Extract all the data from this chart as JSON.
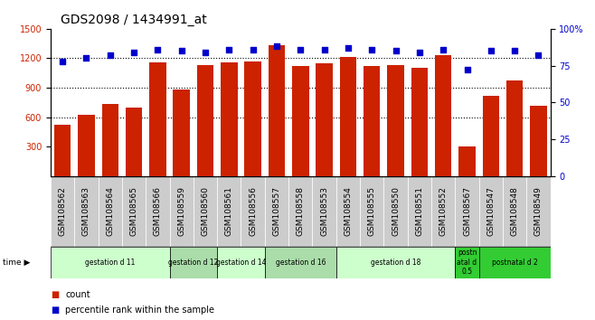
{
  "title": "GDS2098 / 1434991_at",
  "samples": [
    "GSM108562",
    "GSM108563",
    "GSM108564",
    "GSM108565",
    "GSM108566",
    "GSM108559",
    "GSM108560",
    "GSM108561",
    "GSM108556",
    "GSM108557",
    "GSM108558",
    "GSM108553",
    "GSM108554",
    "GSM108555",
    "GSM108550",
    "GSM108551",
    "GSM108552",
    "GSM108567",
    "GSM108547",
    "GSM108548",
    "GSM108549"
  ],
  "counts": [
    520,
    620,
    730,
    700,
    1160,
    880,
    1130,
    1160,
    1170,
    1330,
    1120,
    1150,
    1210,
    1120,
    1130,
    1100,
    1230,
    300,
    820,
    970,
    720
  ],
  "percentiles": [
    78,
    80,
    82,
    84,
    86,
    85,
    84,
    86,
    86,
    88,
    86,
    86,
    87,
    86,
    85,
    84,
    86,
    72,
    85,
    85,
    82
  ],
  "groups": [
    {
      "label": "gestation d 11",
      "start": 0,
      "end": 5,
      "color": "#ccffcc"
    },
    {
      "label": "gestation d 12",
      "start": 5,
      "end": 7,
      "color": "#aaddaa"
    },
    {
      "label": "gestation d 14",
      "start": 7,
      "end": 9,
      "color": "#ccffcc"
    },
    {
      "label": "gestation d 16",
      "start": 9,
      "end": 12,
      "color": "#aaddaa"
    },
    {
      "label": "gestation d 18",
      "start": 12,
      "end": 17,
      "color": "#ccffcc"
    },
    {
      "label": "postn\natal d\n0.5",
      "start": 17,
      "end": 18,
      "color": "#33cc33"
    },
    {
      "label": "postnatal d 2",
      "start": 18,
      "end": 21,
      "color": "#33cc33"
    }
  ],
  "bar_color": "#cc2200",
  "dot_color": "#0000cc",
  "left_ylim": [
    0,
    1500
  ],
  "right_ylim": [
    0,
    100
  ],
  "left_yticks": [
    300,
    600,
    900,
    1200,
    1500
  ],
  "right_yticks": [
    0,
    25,
    50,
    75,
    100
  ],
  "right_yticklabels": [
    "0",
    "25",
    "50",
    "75",
    "100%"
  ],
  "grid_values": [
    600,
    900,
    1200
  ],
  "sample_bg": "#cccccc",
  "plot_bg": "#ffffff",
  "title_fontsize": 10,
  "tick_fontsize": 7,
  "label_fontsize": 6.5
}
